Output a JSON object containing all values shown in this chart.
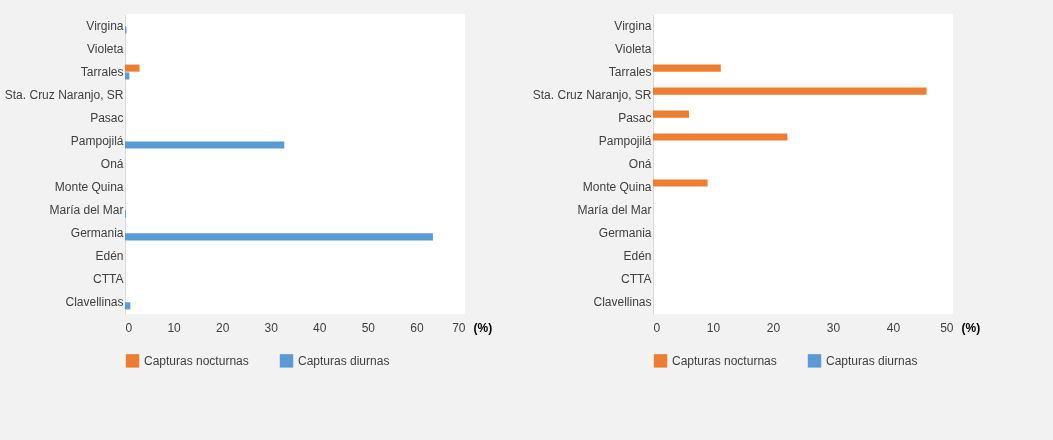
{
  "chart_data": [
    {
      "type": "bar",
      "orientation": "horizontal",
      "xlabel": "(%)",
      "categories": [
        "Virgina",
        "Violeta",
        "Tarrales",
        "Sta. Cruz Naranjo, SR",
        "Pasac",
        "Pampojilá",
        "Oná",
        "Monte Quina",
        "María del Mar",
        "Germania",
        "Edén",
        "CTTA",
        "Clavellinas"
      ],
      "series": [
        {
          "name": "Capturas nocturnas",
          "color": "#ed7d31",
          "values": [
            0,
            0,
            3,
            0,
            0,
            0,
            0,
            0,
            0,
            0,
            0,
            0,
            0
          ]
        },
        {
          "name": "Capturas diurnas",
          "color": "#5b9bd5",
          "values": [
            0.3,
            0,
            0.9,
            0,
            0,
            32.8,
            0,
            0,
            0.2,
            63.4,
            0,
            0,
            1.1
          ]
        }
      ],
      "xlim": [
        0,
        70
      ],
      "xticks": [
        0,
        10,
        20,
        30,
        40,
        50,
        60,
        70
      ],
      "grid": false,
      "legend": "bottom"
    },
    {
      "type": "bar",
      "orientation": "horizontal",
      "xlabel": "(%)",
      "categories": [
        "Virgina",
        "Violeta",
        "Tarrales",
        "Sta. Cruz Naranjo, SR",
        "Pasac",
        "Pampojilá",
        "Oná",
        "Monte Quina",
        "María del Mar",
        "Germania",
        "Edén",
        "CTTA",
        "Clavellinas"
      ],
      "series": [
        {
          "name": "Capturas nocturnas",
          "color": "#ed7d31",
          "values": [
            0,
            0,
            11.3,
            45.6,
            6,
            22.4,
            0,
            9.1,
            0,
            0,
            0,
            0,
            0
          ]
        },
        {
          "name": "Capturas diurnas",
          "color": "#5b9bd5",
          "values": [
            0,
            0,
            0,
            0,
            0,
            0,
            0,
            0,
            0,
            0,
            0,
            0,
            0
          ]
        }
      ],
      "xlim": [
        0,
        50
      ],
      "xticks": [
        0,
        10,
        20,
        30,
        40,
        50
      ],
      "grid": false,
      "legend": "bottom"
    }
  ]
}
